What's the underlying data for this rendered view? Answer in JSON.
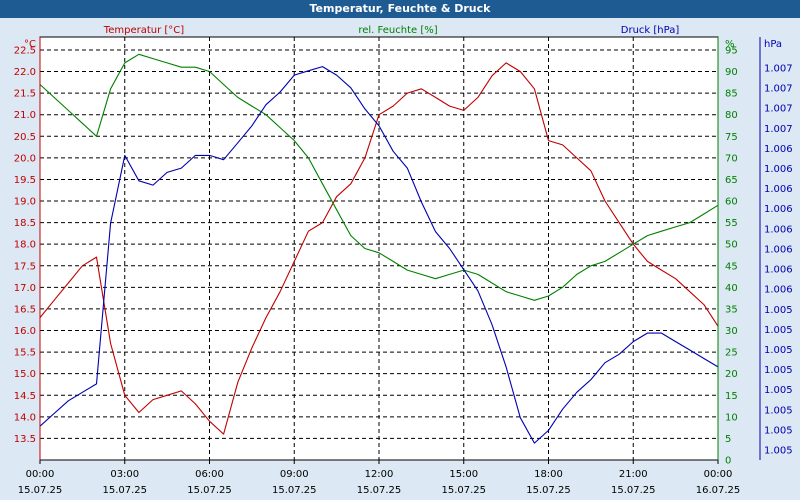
{
  "window": {
    "title": "Temperatur, Feuchte & Druck"
  },
  "chart_data": {
    "type": "line",
    "title": "Temperatur, Feuchte & Druck",
    "x_range": [
      "15.07.25 00:00",
      "16.07.25 00:00"
    ],
    "x_ticks": [
      {
        "time": "00:00",
        "date": "15.07.25"
      },
      {
        "time": "03:00",
        "date": "15.07.25"
      },
      {
        "time": "06:00",
        "date": "15.07.25"
      },
      {
        "time": "09:00",
        "date": "15.07.25"
      },
      {
        "time": "12:00",
        "date": "15.07.25"
      },
      {
        "time": "15:00",
        "date": "15.07.25"
      },
      {
        "time": "18:00",
        "date": "15.07.25"
      },
      {
        "time": "21:00",
        "date": "15.07.25"
      },
      {
        "time": "00:00",
        "date": "16.07.25"
      }
    ],
    "grid": true,
    "colors": {
      "temperature": "#c00000",
      "humidity": "#008000",
      "pressure": "#0000b0",
      "titlebar": "#1e5b93",
      "panel": "#dce8f3"
    },
    "axes": {
      "left": {
        "title": "Temperatur [°C]",
        "unit": "°C",
        "min": 13.0,
        "max": 22.8,
        "ticks": [
          "13.5",
          "14.0",
          "14.5",
          "15.0",
          "15.5",
          "16.0",
          "16.5",
          "17.0",
          "17.5",
          "18.0",
          "18.5",
          "19.0",
          "19.5",
          "20.0",
          "20.5",
          "21.0",
          "21.5",
          "22.0",
          "22.5"
        ]
      },
      "right1": {
        "title": "rel. Feuchte [%]",
        "unit": "%",
        "min": 0,
        "max": 98,
        "ticks": [
          "0",
          "5",
          "10",
          "15",
          "20",
          "25",
          "30",
          "35",
          "40",
          "45",
          "50",
          "55",
          "60",
          "65",
          "70",
          "75",
          "80",
          "85",
          "90",
          "95"
        ]
      },
      "right2": {
        "title": "Druck [hPa]",
        "unit": "hPa",
        "min": 0,
        "max": 1,
        "ticks": [
          "1.005",
          "1.005",
          "1.005",
          "1.005",
          "1.005",
          "1.005",
          "1.005",
          "1.005",
          "1.006",
          "1.006",
          "1.006",
          "1.006",
          "1.006",
          "1.006",
          "1.006",
          "1.006",
          "1.007",
          "1.007",
          "1.007",
          "1.007"
        ]
      }
    },
    "x_hours": [
      0,
      0.5,
      1,
      1.5,
      2,
      2.5,
      3,
      3.5,
      4,
      4.5,
      5,
      5.5,
      6,
      6.5,
      7,
      7.5,
      8,
      8.5,
      9,
      9.5,
      10,
      10.5,
      11,
      11.5,
      12,
      12.5,
      13,
      13.5,
      14,
      14.5,
      15,
      15.5,
      16,
      16.5,
      17,
      17.5,
      18,
      18.5,
      19,
      19.5,
      20,
      20.5,
      21,
      21.5,
      22,
      22.5,
      23,
      23.5,
      24
    ],
    "series": [
      {
        "name": "Temperatur [°C]",
        "axis": "left",
        "values": [
          16.3,
          16.7,
          17.1,
          17.5,
          17.7,
          15.7,
          14.5,
          14.1,
          14.4,
          14.5,
          14.6,
          14.3,
          13.9,
          13.6,
          14.8,
          15.6,
          16.3,
          16.9,
          17.6,
          18.3,
          18.5,
          19.1,
          19.4,
          20.0,
          21.0,
          21.2,
          21.5,
          21.6,
          21.4,
          21.2,
          21.1,
          21.4,
          21.9,
          22.2,
          22.0,
          21.6,
          20.4,
          20.3,
          20.0,
          19.7,
          19.0,
          18.5,
          18.0,
          17.6,
          17.4,
          17.2,
          16.9,
          16.6,
          16.1
        ]
      },
      {
        "name": "rel. Feuchte [%]",
        "axis": "right1",
        "values": [
          87,
          84,
          81,
          78,
          75,
          86,
          92,
          94,
          93,
          92,
          91,
          91,
          90,
          87,
          84,
          82,
          80,
          77,
          74,
          70,
          64,
          58,
          52,
          49,
          48,
          46,
          44,
          43,
          42,
          43,
          44,
          43,
          41,
          39,
          38,
          37,
          38,
          40,
          43,
          45,
          46,
          48,
          50,
          52,
          53,
          54,
          55,
          57,
          59
        ]
      },
      {
        "name": "Druck [hPa]",
        "axis": "right2",
        "values": [
          0.08,
          0.11,
          0.14,
          0.16,
          0.18,
          0.56,
          0.72,
          0.66,
          0.65,
          0.68,
          0.69,
          0.72,
          0.72,
          0.71,
          0.75,
          0.79,
          0.84,
          0.87,
          0.91,
          0.92,
          0.93,
          0.91,
          0.88,
          0.83,
          0.79,
          0.73,
          0.69,
          0.61,
          0.54,
          0.5,
          0.45,
          0.4,
          0.32,
          0.22,
          0.1,
          0.04,
          0.07,
          0.12,
          0.16,
          0.19,
          0.23,
          0.25,
          0.28,
          0.3,
          0.3,
          0.28,
          0.26,
          0.24,
          0.22
        ]
      }
    ]
  }
}
